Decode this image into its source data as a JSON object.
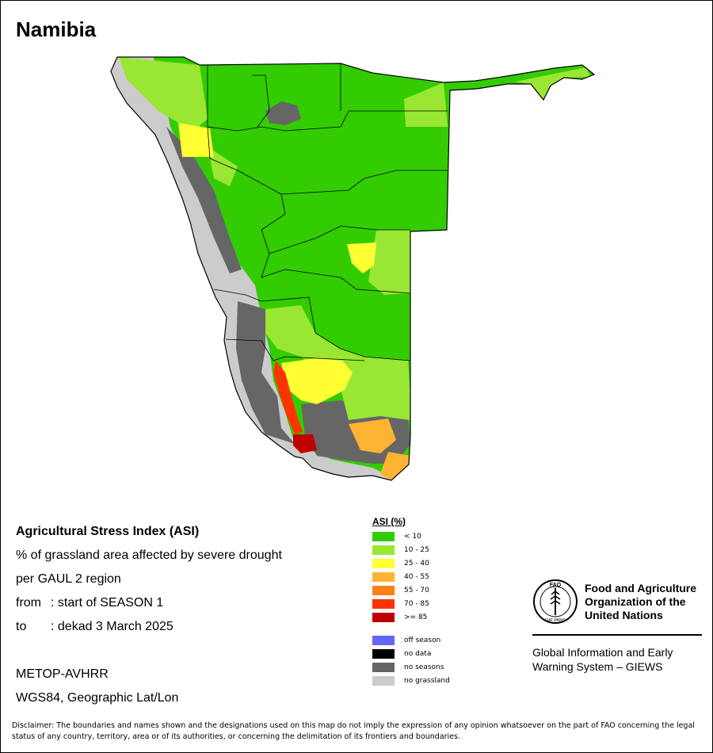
{
  "map": {
    "title": "Namibia"
  },
  "info": {
    "heading": "Agricultural Stress Index (ASI)",
    "line1": "% of grassland area affected by severe drought",
    "line2": "per GAUL 2 region",
    "from_label": "from",
    "from_value": ": start of SEASON 1",
    "to_label": "to",
    "to_value": ": dekad 3 March 2025"
  },
  "meta": {
    "sensor": "METOP-AVHRR",
    "projection": "WGS84, Geographic Lat/Lon"
  },
  "legend": {
    "title": "ASI (%)",
    "classes": [
      {
        "label": "< 10",
        "color": "#33cc00"
      },
      {
        "label": "10 - 25",
        "color": "#99e633"
      },
      {
        "label": "25 - 40",
        "color": "#ffff33"
      },
      {
        "label": "40 - 55",
        "color": "#ffb333"
      },
      {
        "label": "55 - 70",
        "color": "#ff7f1a"
      },
      {
        "label": "70 - 85",
        "color": "#ff3300"
      },
      {
        "label": ">= 85",
        "color": "#c00000"
      }
    ],
    "other": [
      {
        "label": "off season",
        "color": "#6666ff"
      },
      {
        "label": "no data",
        "color": "#000000"
      },
      {
        "label": "no seasons",
        "color": "#666666"
      },
      {
        "label": "no grassland",
        "color": "#cccccc"
      }
    ]
  },
  "org": {
    "logo_text": "FAO",
    "logo_motto": "FIAT PANIS",
    "name": "Food and Agriculture Organization of the United Nations",
    "system": "Global Information and Early Warning System – GIEWS"
  },
  "disclaimer": "Disclaimer: The boundaries and names shown and the designations used on this map do not imply the expression of any opinion whatsoever on the part of FAO concerning the legal status of any country, territory, area or of its authorities, or concerning the delimitation of its frontiers and boundaries."
}
